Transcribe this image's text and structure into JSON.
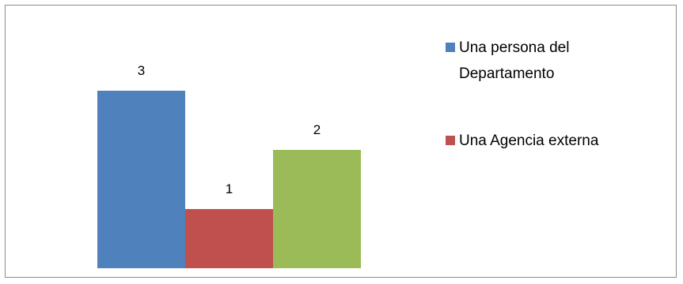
{
  "chart_data": {
    "type": "bar",
    "title": "",
    "xlabel": "",
    "ylabel": "",
    "ylim": [
      0,
      3
    ],
    "grid": false,
    "legend_position": "right",
    "data_labels": true,
    "series": [
      {
        "name": "Una persona del Departamento",
        "values": [
          3
        ],
        "color": "#4F81BD"
      },
      {
        "name": "Una Agencia externa",
        "values": [
          1
        ],
        "color": "#C0504D"
      },
      {
        "name": "",
        "values": [
          2
        ],
        "color": "#9BBB59"
      }
    ],
    "legend": {
      "entries": [
        {
          "line1": "Una persona del",
          "line2": "Departamento",
          "color": "#4F81BD"
        },
        {
          "line1": "Una Agencia externa",
          "line2": "",
          "color": "#C0504D"
        }
      ]
    }
  }
}
